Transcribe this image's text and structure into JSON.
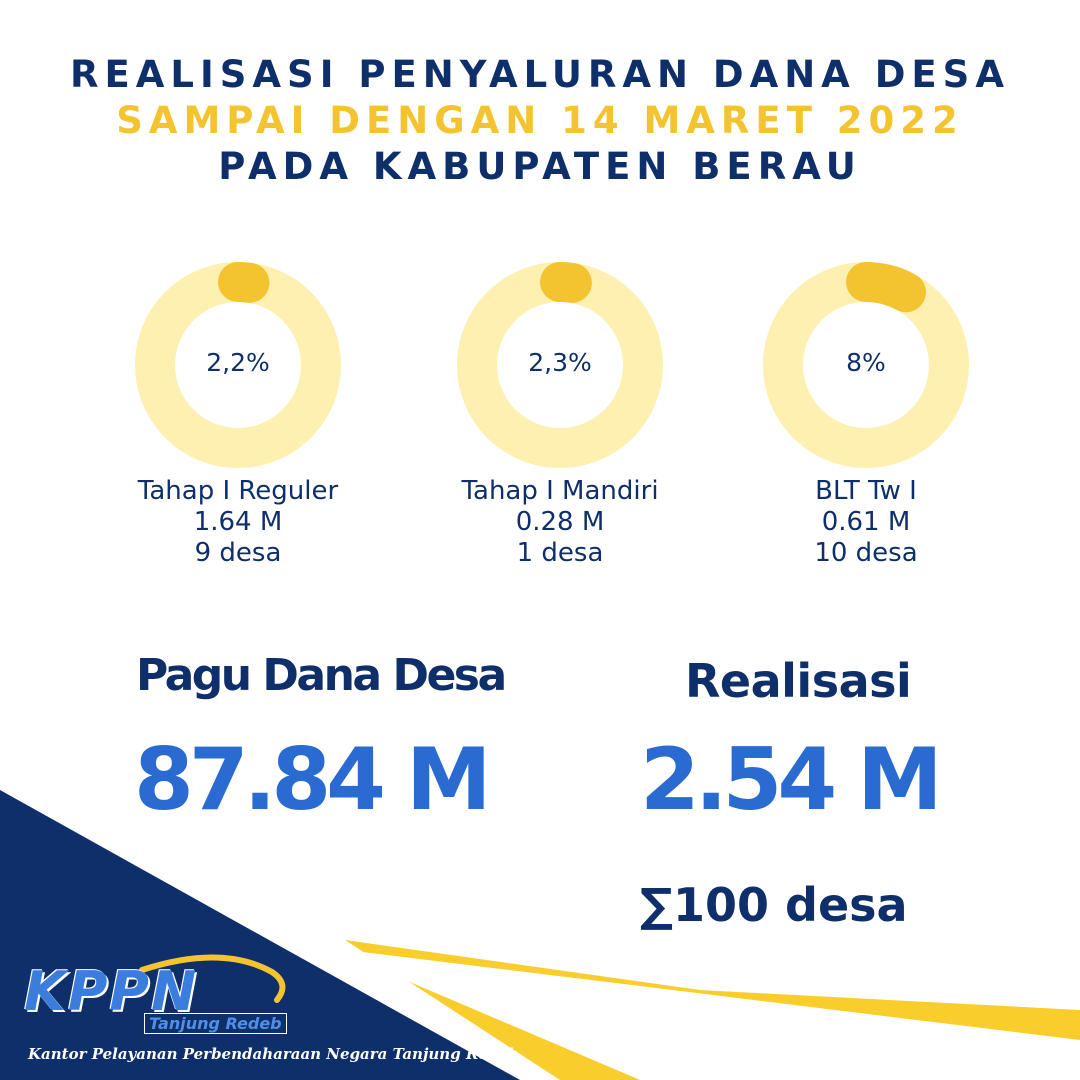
{
  "header": {
    "line1": "REALISASI PENYALURAN DANA DESA",
    "line2": "SAMPAI DENGAN 14 MARET 2022",
    "line3": "PADA KABUPATEN BERAU"
  },
  "donuts": [
    {
      "percent": "2,2%",
      "value": 0.022,
      "name": "Tahap I Reguler",
      "amount": "1.64 M",
      "villages": "9 desa"
    },
    {
      "percent": "2,3%",
      "value": 0.023,
      "name": "Tahap I Mandiri",
      "amount": "0.28 M",
      "villages": "1 desa"
    },
    {
      "percent": "8%",
      "value": 0.08,
      "name": "BLT Tw I",
      "amount": "0.61 M",
      "villages": "10 desa"
    }
  ],
  "summary": {
    "pagu_label": "Pagu Dana Desa",
    "pagu_value": "87.84 M",
    "realisasi_label": "Realisasi",
    "realisasi_value": "2.54 M",
    "total_desa": "∑100 desa"
  },
  "footer": {
    "logo": "KPPN",
    "logo_sub": "Tanjung Redeb",
    "office": "Kantor Pelayanan Perbendaharaan Negara Tanjung Redeb"
  },
  "colors": {
    "navy": "#0f2f6b",
    "yellow": "#f4c430",
    "light_yellow": "#fdf0b0",
    "blue": "#2a6bd1"
  }
}
